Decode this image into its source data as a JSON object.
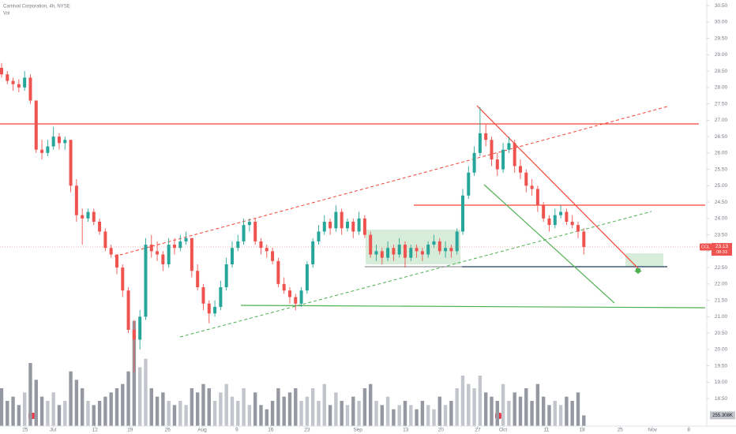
{
  "chart_data": {
    "type": "candlestick",
    "title": "Carnival Corporation, 4h, NYSE",
    "volume_title": "Vol",
    "symbol": "CCL",
    "countdown": "08:33",
    "up_color": "#26a69a",
    "down_color": "#ef5350",
    "grid": false,
    "candles": [
      [
        28.6,
        28.75,
        28.3,
        28.4
      ],
      [
        28.4,
        28.5,
        28.1,
        28.2
      ],
      [
        28.2,
        28.3,
        27.9,
        28.1
      ],
      [
        28.1,
        28.25,
        27.85,
        28.0
      ],
      [
        28.0,
        28.5,
        27.9,
        28.3
      ],
      [
        28.3,
        28.4,
        27.5,
        27.6
      ],
      [
        27.6,
        27.6,
        26.0,
        26.1
      ],
      [
        26.1,
        26.4,
        25.8,
        26.0
      ],
      [
        26.0,
        26.4,
        25.9,
        26.2
      ],
      [
        26.2,
        26.8,
        26.1,
        26.5
      ],
      [
        26.5,
        26.6,
        26.1,
        26.3
      ],
      [
        26.3,
        26.5,
        26.1,
        26.4
      ],
      [
        26.4,
        26.4,
        24.8,
        25.0
      ],
      [
        25.0,
        25.2,
        23.9,
        24.1
      ],
      [
        24.1,
        24.3,
        23.2,
        24.0
      ],
      [
        24.0,
        24.3,
        23.9,
        24.2
      ],
      [
        24.2,
        24.3,
        23.8,
        23.9
      ],
      [
        23.9,
        24.0,
        23.5,
        23.6
      ],
      [
        23.6,
        23.7,
        23.0,
        23.1
      ],
      [
        23.1,
        23.2,
        22.8,
        22.9
      ],
      [
        22.9,
        22.9,
        22.3,
        22.5
      ],
      [
        22.5,
        22.6,
        21.6,
        21.8
      ],
      [
        21.8,
        21.9,
        20.5,
        20.6
      ],
      [
        20.6,
        20.9,
        19.3,
        20.3
      ],
      [
        20.3,
        21.2,
        20.0,
        21.0
      ],
      [
        21.0,
        23.4,
        20.9,
        23.2
      ],
      [
        23.2,
        23.5,
        22.8,
        23.0
      ],
      [
        23.0,
        23.3,
        22.7,
        22.9
      ],
      [
        22.9,
        23.0,
        22.4,
        22.6
      ],
      [
        22.6,
        23.4,
        22.5,
        23.2
      ],
      [
        23.2,
        23.4,
        22.9,
        23.1
      ],
      [
        23.1,
        23.5,
        23.0,
        23.3
      ],
      [
        23.3,
        23.6,
        23.2,
        23.4
      ],
      [
        23.4,
        23.4,
        22.2,
        22.4
      ],
      [
        22.4,
        22.6,
        21.8,
        21.9
      ],
      [
        21.9,
        22.0,
        21.2,
        21.4
      ],
      [
        21.4,
        21.5,
        20.8,
        21.1
      ],
      [
        21.1,
        21.5,
        21.0,
        21.3
      ],
      [
        21.3,
        22.1,
        21.2,
        21.9
      ],
      [
        21.9,
        22.8,
        21.8,
        22.6
      ],
      [
        22.6,
        23.3,
        22.5,
        23.1
      ],
      [
        23.1,
        23.5,
        23.0,
        23.3
      ],
      [
        23.3,
        24.0,
        23.2,
        23.8
      ],
      [
        23.8,
        24.0,
        23.6,
        23.9
      ],
      [
        23.9,
        24.0,
        23.2,
        23.3
      ],
      [
        23.3,
        23.4,
        22.9,
        23.1
      ],
      [
        23.1,
        23.2,
        22.8,
        23.0
      ],
      [
        23.0,
        23.1,
        22.6,
        22.7
      ],
      [
        22.7,
        22.8,
        21.9,
        22.0
      ],
      [
        22.0,
        22.2,
        21.7,
        21.8
      ],
      [
        21.8,
        21.9,
        21.4,
        21.6
      ],
      [
        21.6,
        21.7,
        21.2,
        21.4
      ],
      [
        21.4,
        21.9,
        21.3,
        21.8
      ],
      [
        21.8,
        22.7,
        21.7,
        22.6
      ],
      [
        22.6,
        23.4,
        22.5,
        23.3
      ],
      [
        23.3,
        23.8,
        23.2,
        23.6
      ],
      [
        23.6,
        24.1,
        23.5,
        23.9
      ],
      [
        23.9,
        24.0,
        23.5,
        23.7
      ],
      [
        23.7,
        24.4,
        23.6,
        24.2
      ],
      [
        24.2,
        24.3,
        23.5,
        23.7
      ],
      [
        23.7,
        24.0,
        23.6,
        23.9
      ],
      [
        23.9,
        24.0,
        23.4,
        23.6
      ],
      [
        23.6,
        24.2,
        23.5,
        24.0
      ],
      [
        24.0,
        24.1,
        23.4,
        23.5
      ],
      [
        23.5,
        23.6,
        22.8,
        22.9
      ],
      [
        22.9,
        23.2,
        22.7,
        23.0
      ],
      [
        23.0,
        23.1,
        22.6,
        22.8
      ],
      [
        22.8,
        23.3,
        22.7,
        23.1
      ],
      [
        23.1,
        23.2,
        22.7,
        22.9
      ],
      [
        22.9,
        23.4,
        22.8,
        23.2
      ],
      [
        23.2,
        23.3,
        22.5,
        22.8
      ],
      [
        22.8,
        23.2,
        22.7,
        23.1
      ],
      [
        23.1,
        23.2,
        22.8,
        23.0
      ],
      [
        23.0,
        23.1,
        22.7,
        22.9
      ],
      [
        22.9,
        23.3,
        22.8,
        23.2
      ],
      [
        23.2,
        23.5,
        23.1,
        23.3
      ],
      [
        23.3,
        23.4,
        22.9,
        23.0
      ],
      [
        23.0,
        23.3,
        22.8,
        23.1
      ],
      [
        23.1,
        23.2,
        22.8,
        23.0
      ],
      [
        23.0,
        23.7,
        22.9,
        23.6
      ],
      [
        23.6,
        24.9,
        23.5,
        24.7
      ],
      [
        24.7,
        25.6,
        24.6,
        25.4
      ],
      [
        25.4,
        26.2,
        25.3,
        26.0
      ],
      [
        26.0,
        27.4,
        25.9,
        26.6
      ],
      [
        26.6,
        26.9,
        26.2,
        26.4
      ],
      [
        26.4,
        26.5,
        25.6,
        25.8
      ],
      [
        25.8,
        26.0,
        25.3,
        25.5
      ],
      [
        25.5,
        26.3,
        25.4,
        26.1
      ],
      [
        26.1,
        26.5,
        26.0,
        26.3
      ],
      [
        26.3,
        26.4,
        25.4,
        25.6
      ],
      [
        25.6,
        25.8,
        25.2,
        25.4
      ],
      [
        25.4,
        25.5,
        24.8,
        25.0
      ],
      [
        25.0,
        25.2,
        24.7,
        24.9
      ],
      [
        24.9,
        25.0,
        24.2,
        24.4
      ],
      [
        24.4,
        24.5,
        23.9,
        24.0
      ],
      [
        24.0,
        24.1,
        23.6,
        23.8
      ],
      [
        23.8,
        24.3,
        23.7,
        24.1
      ],
      [
        24.1,
        24.4,
        24.0,
        24.2
      ],
      [
        24.2,
        24.3,
        23.8,
        23.9
      ],
      [
        23.9,
        24.1,
        23.7,
        23.8
      ],
      [
        23.8,
        23.9,
        23.4,
        23.6
      ],
      [
        23.6,
        23.7,
        22.9,
        23.13
      ]
    ],
    "volume": {
      "up_color": "#c3c5cc",
      "down_color": "#9598a1",
      "ylim": [
        0,
        3000
      ],
      "last_value_label": "255.308K",
      "values": [
        900,
        600,
        700,
        500,
        800,
        1500,
        1100,
        700,
        600,
        800,
        500,
        600,
        1300,
        1100,
        900,
        600,
        500,
        600,
        700,
        800,
        900,
        1000,
        1300,
        2500,
        1400,
        1600,
        900,
        700,
        800,
        600,
        500,
        600,
        500,
        900,
        800,
        1000,
        900,
        600,
        800,
        1000,
        700,
        600,
        900,
        500,
        800,
        500,
        400,
        600,
        900,
        700,
        800,
        900,
        600,
        700,
        900,
        600,
        1000,
        500,
        800,
        600,
        500,
        700,
        600,
        900,
        1000,
        600,
        500,
        700,
        400,
        500,
        600,
        500,
        400,
        600,
        500,
        400,
        700,
        500,
        600,
        900,
        1200,
        1000,
        900,
        1200,
        800,
        700,
        600,
        1000,
        600,
        800,
        700,
        900,
        600,
        1000,
        700,
        500,
        600,
        500,
        700,
        600,
        800,
        255.308
      ]
    },
    "xlim": [
      -0.27,
      122.33
    ],
    "xticks": [
      {
        "value": 4.1,
        "label": "25"
      },
      {
        "value": 8.9,
        "label": "Jul"
      },
      {
        "value": 16.2,
        "label": "12"
      },
      {
        "value": 22.3,
        "label": "19"
      },
      {
        "value": 28.8,
        "label": "26"
      },
      {
        "value": 34.8,
        "label": "Aug"
      },
      {
        "value": 40.8,
        "label": "9"
      },
      {
        "value": 46.7,
        "label": "16"
      },
      {
        "value": 53.0,
        "label": "23"
      },
      {
        "value": 61.8,
        "label": "Sep"
      },
      {
        "value": 70.1,
        "label": "13"
      },
      {
        "value": 76.2,
        "label": "20"
      },
      {
        "value": 82.6,
        "label": "27"
      },
      {
        "value": 87.0,
        "label": "Oct"
      },
      {
        "value": 94.5,
        "label": "11"
      },
      {
        "value": 100.7,
        "label": "18"
      },
      {
        "value": 107.3,
        "label": "25"
      },
      {
        "value": 112.9,
        "label": "Nov"
      },
      {
        "value": 119.2,
        "label": "8"
      }
    ],
    "ylim": [
      17.66,
      30.67
    ],
    "yticks": [
      {
        "value": 18.5,
        "label": "18.50"
      },
      {
        "value": 19,
        "label": "19.00"
      },
      {
        "value": 19.5,
        "label": "19.50"
      },
      {
        "value": 20,
        "label": "20.00"
      },
      {
        "value": 20.5,
        "label": "20.50"
      },
      {
        "value": 21,
        "label": "21.00"
      },
      {
        "value": 21.5,
        "label": "21.50"
      },
      {
        "value": 22,
        "label": "22.00"
      },
      {
        "value": 22.5,
        "label": "22.50"
      },
      {
        "value": 23,
        "label": "23.00"
      },
      {
        "value": 23.5,
        "label": "23.50"
      },
      {
        "value": 24,
        "label": "24.00"
      },
      {
        "value": 24.5,
        "label": "24.50"
      },
      {
        "value": 25,
        "label": "25.00"
      },
      {
        "value": 25.5,
        "label": "25.50"
      },
      {
        "value": 26,
        "label": "26.00"
      },
      {
        "value": 26.5,
        "label": "26.50"
      },
      {
        "value": 27,
        "label": "27.00"
      },
      {
        "value": 27.5,
        "label": "27.50"
      },
      {
        "value": 28,
        "label": "28.00"
      },
      {
        "value": 28.5,
        "label": "28.50"
      },
      {
        "value": 29,
        "label": "29.00"
      },
      {
        "value": 29.5,
        "label": "29.50"
      },
      {
        "value": 30,
        "label": "30.00"
      },
      {
        "value": 30.5,
        "label": "30.50"
      }
    ]
  }
}
